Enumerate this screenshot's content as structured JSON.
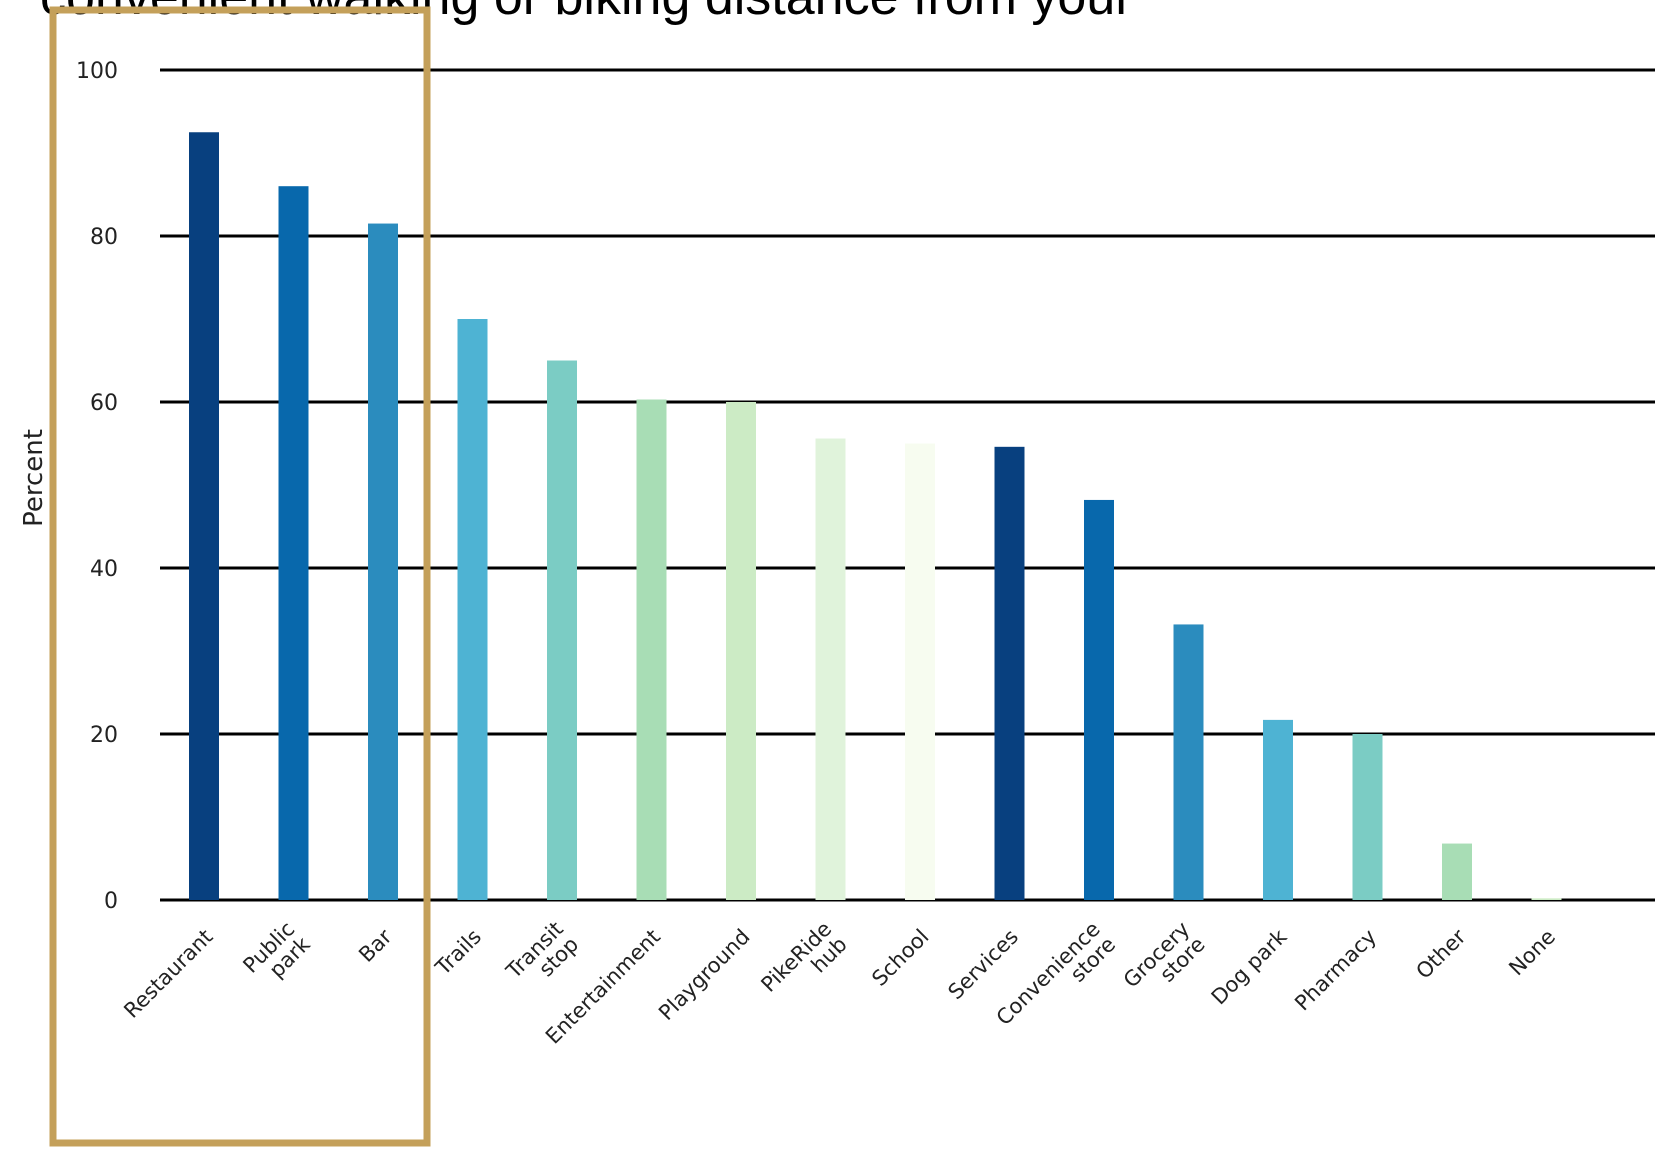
{
  "header": {
    "title_fragment": "convenient walking or biking distance from your"
  },
  "chart_data": {
    "type": "bar",
    "title": "",
    "xlabel": "",
    "ylabel": "Percent",
    "ylim": [
      0,
      100
    ],
    "yticks": [
      0,
      20,
      40,
      60,
      80,
      100
    ],
    "grid": true,
    "legend": "none",
    "categories": [
      [
        "Restaurant"
      ],
      [
        "Public",
        "park"
      ],
      [
        "Bar"
      ],
      [
        "Trails"
      ],
      [
        "Transit",
        "stop"
      ],
      [
        "Entertainment"
      ],
      [
        "Playground"
      ],
      [
        "PikeRide",
        "hub"
      ],
      [
        "School"
      ],
      [
        "Services"
      ],
      [
        "Convenience",
        "store"
      ],
      [
        "Grocery",
        "store"
      ],
      [
        "Dog park"
      ],
      [
        "Pharmacy"
      ],
      [
        "Other"
      ],
      [
        "None"
      ]
    ],
    "values": [
      92.5,
      86,
      81.5,
      70,
      65,
      60.3,
      60,
      55.6,
      55,
      54.6,
      48.2,
      33.2,
      21.7,
      20,
      6.8,
      0.2
    ],
    "colors": [
      "#08407f",
      "#0868ac",
      "#2b8cbe",
      "#4eb3d3",
      "#7bccc4",
      "#a8ddb5",
      "#ccebc5",
      "#e0f3db",
      "#f7fcf0",
      "#08407f",
      "#0868ac",
      "#2b8cbe",
      "#4eb3d3",
      "#7bccc4",
      "#a8ddb5",
      "#ccebc5"
    ]
  },
  "highlight": {
    "color": "#c4a05a",
    "categories": [
      "Restaurant",
      "Public park",
      "Bar"
    ]
  }
}
